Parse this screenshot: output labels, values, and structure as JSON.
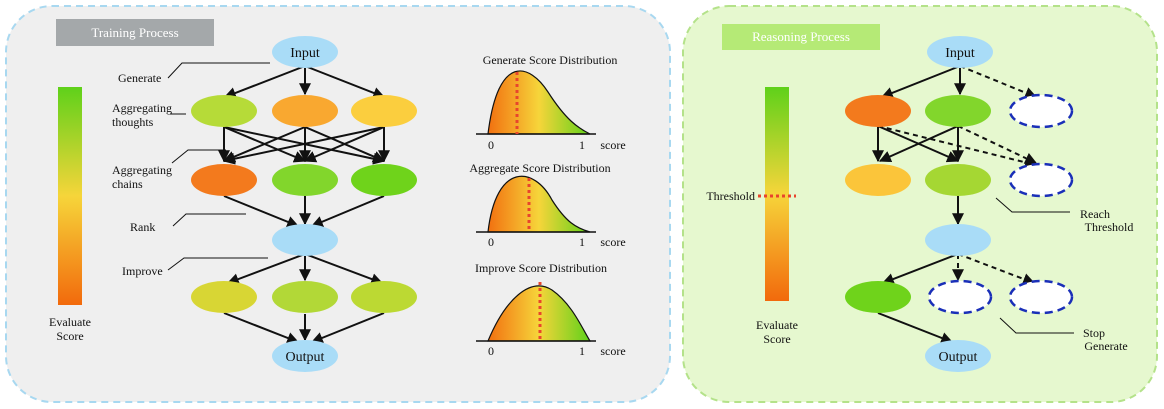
{
  "training": {
    "title": "Training Process",
    "nodes": {
      "input": "Input",
      "output": "Output"
    },
    "steps": {
      "generate": "Generate",
      "agg_thoughts_1": "Aggregating",
      "agg_thoughts_2": "thoughts",
      "agg_chains_1": "Aggregating",
      "agg_chains_2": "chains",
      "rank": "Rank",
      "improve": "Improve"
    },
    "scale": {
      "label_1": "Evaluate",
      "label_2": "Score"
    },
    "distributions": [
      {
        "title": "Generate Score Distribution",
        "tick_0": "0",
        "tick_1": "1",
        "axis": "score"
      },
      {
        "title": "Aggregate Score Distribution",
        "tick_0": "0",
        "tick_1": "1",
        "axis": "score"
      },
      {
        "title": "Improve Score Distribution",
        "tick_0": "0",
        "tick_1": "1",
        "axis": "score"
      }
    ]
  },
  "reasoning": {
    "title": "Reasoning Process",
    "nodes": {
      "input": "Input",
      "output": "Output"
    },
    "threshold": "Threshold",
    "reach_1": "Reach",
    "reach_2": "Threshold",
    "stop_1": "Stop",
    "stop_2": "Generate",
    "scale": {
      "label_1": "Evaluate",
      "label_2": "Score"
    }
  },
  "colors": {
    "training_panel": "#efefef",
    "training_border": "#a8d8f0",
    "reasoning_panel": "#e6f8cf",
    "reasoning_border": "#b4e28a",
    "input_output_node": "#a9dcf7",
    "threshold_line": "#e8452c",
    "pruned_node_border": "#1a2fb8"
  }
}
